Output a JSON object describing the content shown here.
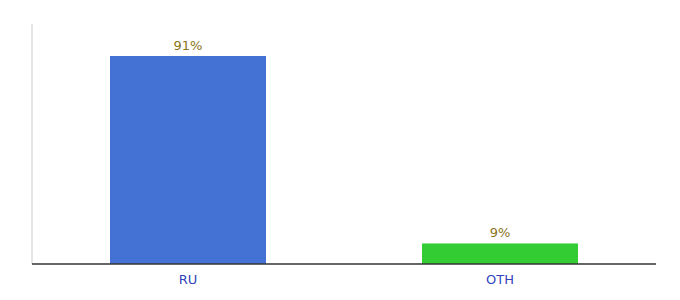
{
  "chart_data": {
    "type": "bar",
    "categories": [
      "RU",
      "OTH"
    ],
    "values": [
      91,
      9
    ],
    "value_labels": [
      "91%",
      "9%"
    ],
    "colors": [
      "#4472d4",
      "#33cc33"
    ],
    "ylim": [
      0,
      105
    ],
    "data_labels": true,
    "tick_labels": "x",
    "grid": false
  }
}
